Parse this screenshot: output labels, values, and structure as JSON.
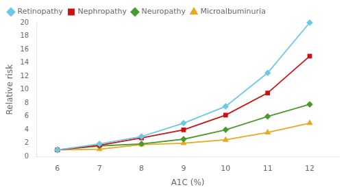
{
  "chart_data": {
    "type": "line",
    "xlabel": "A1C (%)",
    "ylabel": "Relative risk",
    "x": [
      6,
      7,
      8,
      9,
      10,
      11,
      12
    ],
    "series": [
      {
        "name": "Retinopathy",
        "color": "#6DC8E8",
        "marker": "diamond",
        "values": [
          1.0,
          1.9,
          3.0,
          5.0,
          7.5,
          12.5,
          20.0
        ]
      },
      {
        "name": "Nephropathy",
        "color": "#CC1111",
        "marker": "square",
        "values": [
          1.0,
          1.7,
          2.8,
          4.0,
          6.2,
          9.5,
          15.0
        ]
      },
      {
        "name": "Neuropathy",
        "color": "#4A9A2E",
        "marker": "diamond",
        "values": [
          1.0,
          1.6,
          1.9,
          2.6,
          4.0,
          6.0,
          7.8
        ]
      },
      {
        "name": "Microalbuminuria",
        "color": "#E8A820",
        "marker": "triangle",
        "values": [
          1.0,
          1.1,
          1.8,
          2.0,
          2.5,
          3.6,
          5.0
        ]
      }
    ],
    "xlim": [
      5.5,
      12.7
    ],
    "ylim": [
      0,
      20
    ],
    "xticks": [
      6,
      7,
      8,
      9,
      10,
      11,
      12
    ],
    "yticks": [
      0,
      2,
      4,
      6,
      8,
      10,
      12,
      14,
      16,
      18,
      20
    ],
    "grid": false,
    "legend": "upper left"
  }
}
